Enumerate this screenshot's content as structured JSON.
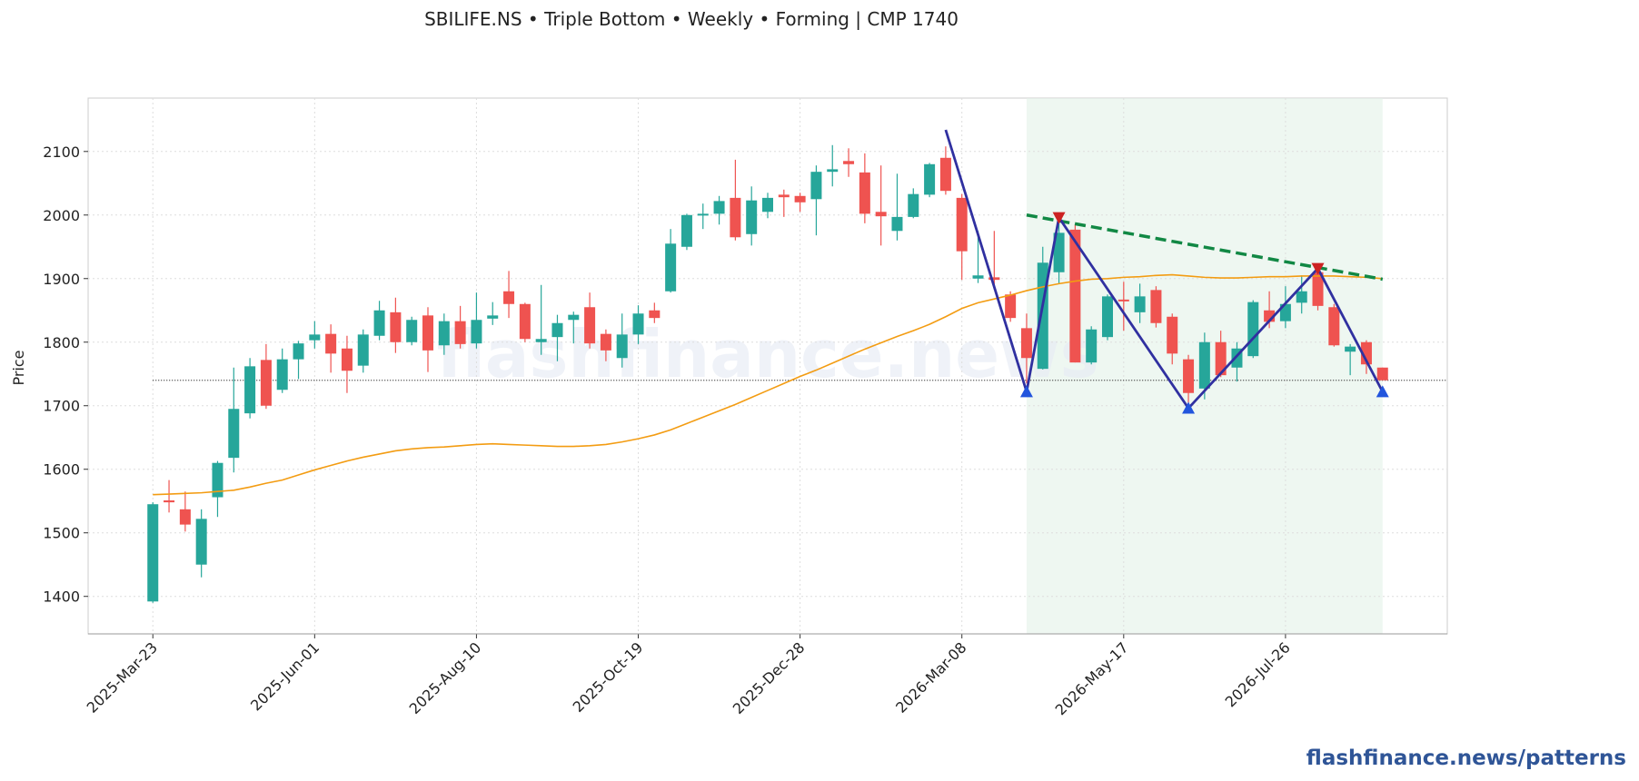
{
  "chart_data": {
    "type": "candlestick",
    "title": "SBILIFE.NS  •  Triple Bottom  •  Weekly  •  Forming  |  CMP 1740",
    "ylabel": "Price",
    "watermark": "flashfinance.news",
    "footer": "flashfinance.news/patterns",
    "up_color": "#26a69a",
    "down_color": "#ef5350",
    "x": [
      "2025-Mar-23",
      "2025-Mar-30",
      "2025-Apr-06",
      "2025-Apr-13",
      "2025-Apr-20",
      "2025-Apr-27",
      "2025-May-04",
      "2025-May-11",
      "2025-May-18",
      "2025-May-25",
      "2025-Jun-01",
      "2025-Jun-08",
      "2025-Jun-15",
      "2025-Jun-22",
      "2025-Jun-29",
      "2025-Jul-06",
      "2025-Jul-13",
      "2025-Jul-20",
      "2025-Jul-27",
      "2025-Aug-03",
      "2025-Aug-10",
      "2025-Aug-17",
      "2025-Aug-24",
      "2025-Aug-31",
      "2025-Sep-07",
      "2025-Sep-14",
      "2025-Sep-21",
      "2025-Sep-28",
      "2025-Oct-05",
      "2025-Oct-12",
      "2025-Oct-19",
      "2025-Oct-26",
      "2025-Nov-02",
      "2025-Nov-09",
      "2025-Nov-16",
      "2025-Nov-23",
      "2025-Nov-30",
      "2025-Dec-07",
      "2025-Dec-14",
      "2025-Dec-21",
      "2025-Dec-28",
      "2026-Jan-04",
      "2026-Jan-11",
      "2026-Jan-18",
      "2026-Jan-25",
      "2026-Feb-01",
      "2026-Feb-08",
      "2026-Feb-15",
      "2026-Feb-22",
      "2026-Mar-01",
      "2026-Mar-08",
      "2026-Mar-15",
      "2026-Mar-22",
      "2026-Mar-29",
      "2026-Apr-05",
      "2026-Apr-12",
      "2026-Apr-19",
      "2026-Apr-26",
      "2026-May-03",
      "2026-May-10",
      "2026-May-17",
      "2026-May-24",
      "2026-May-31",
      "2026-Jun-07",
      "2026-Jun-14",
      "2026-Jun-21",
      "2026-Jun-28",
      "2026-Jul-05",
      "2026-Jul-12",
      "2026-Jul-19",
      "2026-Jul-26",
      "2026-Aug-02",
      "2026-Aug-09",
      "2026-Aug-16",
      "2026-Aug-23",
      "2026-Aug-30",
      "2026-Sep-06"
    ],
    "open": [
      1392,
      1551,
      1537,
      1450,
      1556,
      1618,
      1688,
      1772,
      1725,
      1773,
      1803,
      1813,
      1790,
      1763,
      1810,
      1847,
      1800,
      1842,
      1795,
      1833,
      1798,
      1837,
      1880,
      1860,
      1800,
      1808,
      1835,
      1855,
      1813,
      1775,
      1812,
      1850,
      1880,
      1950,
      2000,
      2002,
      2027,
      1970,
      2005,
      2032,
      2030,
      2025,
      2068,
      2085,
      2067,
      2005,
      1975,
      1997,
      2032,
      2090,
      2027,
      1900,
      1902,
      1875,
      1822,
      1758,
      1910,
      1977,
      1768,
      1808,
      1867,
      1847,
      1882,
      1840,
      1773,
      1727,
      1800,
      1760,
      1778,
      1850,
      1833,
      1862,
      1910,
      1855,
      1785,
      1800,
      1760
    ],
    "high": [
      1548,
      1583,
      1565,
      1537,
      1613,
      1760,
      1775,
      1797,
      1790,
      1802,
      1833,
      1828,
      1810,
      1820,
      1865,
      1870,
      1840,
      1855,
      1845,
      1857,
      1878,
      1863,
      1912,
      1862,
      1890,
      1843,
      1848,
      1878,
      1820,
      1845,
      1858,
      1862,
      1978,
      2002,
      2018,
      2030,
      2087,
      2045,
      2035,
      2040,
      2035,
      2078,
      2110,
      2105,
      2097,
      2078,
      2065,
      2042,
      2082,
      2108,
      2033,
      1975,
      1975,
      1880,
      1845,
      1950,
      2000,
      1985,
      1825,
      1875,
      1895,
      1892,
      1888,
      1845,
      1780,
      1815,
      1818,
      1800,
      1866,
      1880,
      1888,
      1905,
      1920,
      1860,
      1797,
      1803,
      1760
    ],
    "low": [
      1390,
      1532,
      1502,
      1430,
      1525,
      1595,
      1680,
      1695,
      1720,
      1742,
      1790,
      1752,
      1720,
      1752,
      1803,
      1783,
      1795,
      1753,
      1780,
      1790,
      1790,
      1827,
      1838,
      1800,
      1780,
      1770,
      1798,
      1790,
      1770,
      1760,
      1797,
      1830,
      1878,
      1945,
      1978,
      1985,
      1960,
      1952,
      1995,
      1997,
      2005,
      1968,
      2045,
      2060,
      1987,
      1952,
      1960,
      1995,
      2028,
      2032,
      1898,
      1893,
      1887,
      1832,
      1735,
      1757,
      1892,
      1768,
      1765,
      1803,
      1818,
      1830,
      1823,
      1765,
      1703,
      1710,
      1745,
      1738,
      1775,
      1822,
      1822,
      1845,
      1850,
      1793,
      1748,
      1750,
      1740
    ],
    "close": [
      1545,
      1548,
      1513,
      1522,
      1610,
      1695,
      1762,
      1700,
      1773,
      1798,
      1812,
      1782,
      1755,
      1812,
      1850,
      1800,
      1835,
      1787,
      1833,
      1797,
      1835,
      1842,
      1860,
      1805,
      1805,
      1830,
      1843,
      1798,
      1787,
      1812,
      1845,
      1838,
      1955,
      2000,
      2002,
      2022,
      1965,
      2023,
      2027,
      2028,
      2020,
      2068,
      2072,
      2080,
      2002,
      1998,
      1997,
      2033,
      2080,
      2038,
      1943,
      1905,
      1898,
      1838,
      1775,
      1925,
      1972,
      1768,
      1820,
      1872,
      1865,
      1872,
      1830,
      1782,
      1720,
      1800,
      1748,
      1790,
      1863,
      1832,
      1860,
      1880,
      1857,
      1795,
      1793,
      1765,
      1740
    ],
    "series": [
      {
        "color": "#f39c12",
        "values": [
          1560,
          1561,
          1562,
          1563,
          1565,
          1567,
          1572,
          1578,
          1583,
          1591,
          1599,
          1606,
          1613,
          1619,
          1624,
          1629,
          1632,
          1634,
          1635,
          1637,
          1639,
          1640,
          1639,
          1638,
          1637,
          1636,
          1636,
          1637,
          1639,
          1643,
          1648,
          1654,
          1662,
          1672,
          1682,
          1692,
          1702,
          1713,
          1724,
          1735,
          1746,
          1756,
          1767,
          1778,
          1789,
          1799,
          1809,
          1818,
          1828,
          1840,
          1853,
          1862,
          1868,
          1874,
          1881,
          1887,
          1892,
          1896,
          1899,
          1900,
          1902,
          1903,
          1905,
          1906,
          1904,
          1902,
          1901,
          1901,
          1902,
          1903,
          1903,
          1904,
          1904,
          1904,
          1903,
          1902,
          1900
        ]
      }
    ],
    "zone": {
      "x": [
        "2026-Apr-05",
        "2026-Sep-06"
      ],
      "color": "#e3f2e8"
    },
    "cmp": 1740,
    "pattern": {
      "color": "#3030a0",
      "x": [
        "2026-Mar-01",
        "2026-Apr-05",
        "2026-Apr-19",
        "2026-Jun-14",
        "2026-Aug-09",
        "2026-Sep-06"
      ],
      "y": [
        2134,
        1722,
        1996,
        1696,
        1916,
        1722
      ]
    },
    "troughs": {
      "color": "#2255dd",
      "x": [
        "2026-Apr-05",
        "2026-Jun-14",
        "2026-Sep-06"
      ],
      "y": [
        1722,
        1696,
        1722
      ]
    },
    "peaks": {
      "color": "#cc2222",
      "x": [
        "2026-Apr-19",
        "2026-Aug-09"
      ],
      "y": [
        1996,
        1916
      ]
    },
    "resistance": {
      "color": "#118844",
      "x": [
        "2026-Apr-05",
        "2026-Sep-06"
      ],
      "y": [
        2000,
        1899
      ]
    },
    "xlim": [
      "2025-Feb-23",
      "2026-Oct-04"
    ],
    "ylim": [
      1341,
      2184
    ],
    "xticks": [
      "2025-Mar-23",
      "2025-Jun-01",
      "2025-Aug-10",
      "2025-Oct-19",
      "2025-Dec-28",
      "2026-Mar-08",
      "2026-May-17",
      "2026-Jul-26"
    ],
    "yticks": [
      1400,
      1500,
      1600,
      1700,
      1800,
      1900,
      2000,
      2100
    ],
    "grid": true
  }
}
